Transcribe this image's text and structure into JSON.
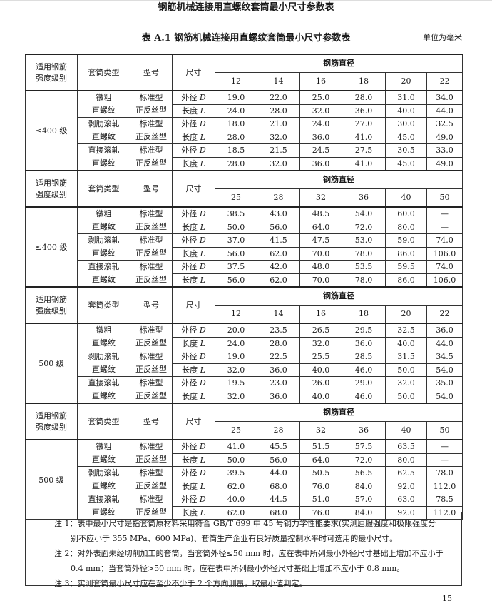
{
  "running_head": "钢筋机械连接用直螺纹套筒最小尺寸参数表",
  "caption": "表 A.1  钢筋机械连接用直螺纹套筒最小尺寸参数表",
  "unit": "单位为毫米",
  "headers": {
    "grade": [
      "适用钢筋",
      "强度级别"
    ],
    "sleeve_type": "套筒类型",
    "model": "型号",
    "dimension": "尺寸",
    "diameter": "钢筋直径"
  },
  "sleeve_types": [
    [
      "镦粗",
      "直螺纹"
    ],
    [
      "剥肋滚轧",
      "直螺纹"
    ],
    [
      "直接滚轧",
      "直螺纹"
    ]
  ],
  "models": [
    "标准型",
    "正反丝型"
  ],
  "dimensions": [
    {
      "name": "外径",
      "sym": "D"
    },
    {
      "name": "长度",
      "sym": "L"
    }
  ],
  "blocks": [
    {
      "grade": "≤400 级",
      "diameters": [
        "12",
        "14",
        "16",
        "18",
        "20",
        "22"
      ],
      "rows": [
        [
          "19.0",
          "22.0",
          "25.0",
          "28.0",
          "31.0",
          "34.0"
        ],
        [
          "24.0",
          "28.0",
          "32.0",
          "36.0",
          "40.0",
          "44.0"
        ],
        [
          "18.0",
          "21.0",
          "24.0",
          "27.0",
          "30.0",
          "32.5"
        ],
        [
          "28.0",
          "32.0",
          "36.0",
          "41.0",
          "45.0",
          "49.0"
        ],
        [
          "18.5",
          "21.5",
          "24.5",
          "27.5",
          "30.5",
          "33.0"
        ],
        [
          "28.0",
          "32.0",
          "36.0",
          "41.0",
          "45.0",
          "49.0"
        ]
      ]
    },
    {
      "grade": "≤400 级",
      "diameters": [
        "25",
        "28",
        "32",
        "36",
        "40",
        "50"
      ],
      "rows": [
        [
          "38.5",
          "43.0",
          "48.5",
          "54.0",
          "60.0",
          "—"
        ],
        [
          "50.0",
          "56.0",
          "64.0",
          "72.0",
          "80.0",
          "—"
        ],
        [
          "37.0",
          "41.5",
          "47.5",
          "53.0",
          "59.0",
          "74.0"
        ],
        [
          "56.0",
          "62.0",
          "70.0",
          "78.0",
          "86.0",
          "106.0"
        ],
        [
          "37.5",
          "42.0",
          "48.0",
          "53.5",
          "59.5",
          "74.0"
        ],
        [
          "56.0",
          "62.0",
          "70.0",
          "78.0",
          "86.0",
          "106.0"
        ]
      ]
    },
    {
      "grade": "500 级",
      "diameters": [
        "12",
        "14",
        "16",
        "18",
        "20",
        "22"
      ],
      "rows": [
        [
          "20.0",
          "23.5",
          "26.5",
          "29.5",
          "32.5",
          "36.0"
        ],
        [
          "24.0",
          "28.0",
          "32.0",
          "36.0",
          "40.0",
          "44.0"
        ],
        [
          "19.0",
          "22.5",
          "25.5",
          "28.5",
          "31.5",
          "34.5"
        ],
        [
          "32.0",
          "36.0",
          "40.0",
          "46.0",
          "50.0",
          "54.0"
        ],
        [
          "19.5",
          "23.0",
          "26.0",
          "29.0",
          "32.0",
          "35.0"
        ],
        [
          "32.0",
          "36.0",
          "40.0",
          "46.0",
          "50.0",
          "54.0"
        ]
      ]
    },
    {
      "grade": "500 级",
      "diameters": [
        "25",
        "28",
        "32",
        "36",
        "40",
        "50"
      ],
      "rows": [
        [
          "41.0",
          "45.5",
          "51.5",
          "57.5",
          "63.5",
          "—"
        ],
        [
          "50.0",
          "56.0",
          "64.0",
          "72.0",
          "80.0",
          "—"
        ],
        [
          "39.5",
          "44.0",
          "50.5",
          "56.5",
          "62.5",
          "78.0"
        ],
        [
          "62.0",
          "68.0",
          "76.0",
          "84.0",
          "92.0",
          "112.0"
        ],
        [
          "40.0",
          "44.5",
          "51.0",
          "57.0",
          "63.0",
          "78.5"
        ],
        [
          "62.0",
          "68.0",
          "76.0",
          "84.0",
          "92.0",
          "112.0"
        ]
      ]
    }
  ],
  "notes": [
    {
      "label": "注 1：",
      "line1": "表中最小尺寸是指套筒原材料采用符合 GB/T 699 中 45 号钢力学性能要求(实测屈服强度和极限强度分",
      "line2": "别不应小于 355 MPa、600 MPa)、套筒生产企业有良好质量控制水平时可选用的最小尺寸。"
    },
    {
      "label": "注 2：",
      "line1": "对外表面未经切削加工的套筒，当套筒外径≤50 mm 时，应在表中所列最小外径尺寸基础上增加不应小于",
      "line2": "0.4 mm；当套筒外径>50 mm 时，应在表中所列最小外径尺寸基础上增加不应小于 0.8 mm。"
    },
    {
      "label": "注 3：",
      "line1": "实测套筒最小尺寸应在至少不少于 2 个方向测量，取最小值判定。",
      "line2": ""
    }
  ],
  "page_number": "15"
}
